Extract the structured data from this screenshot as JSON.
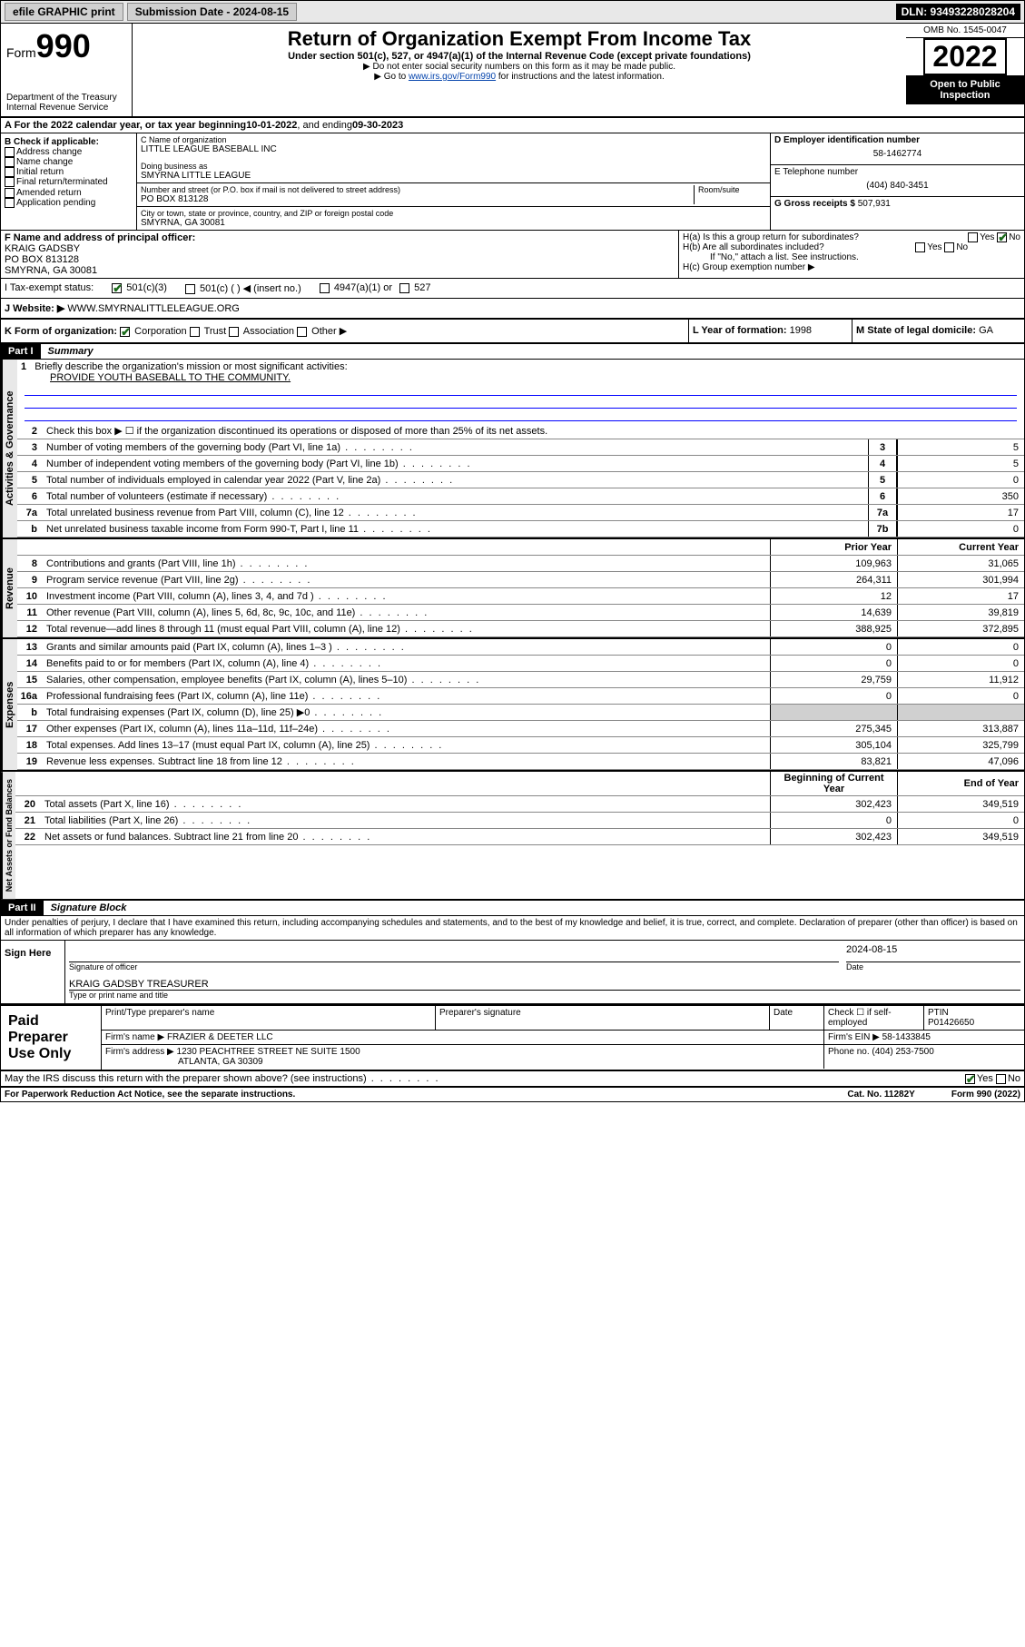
{
  "topbar": {
    "efile": "efile GRAPHIC print",
    "submission_label": "Submission Date - 2024-08-15",
    "dln": "DLN: 93493228028204"
  },
  "header": {
    "form_prefix": "Form",
    "form_number": "990",
    "dept": "Department of the Treasury",
    "irs": "Internal Revenue Service",
    "title": "Return of Organization Exempt From Income Tax",
    "subtitle": "Under section 501(c), 527, or 4947(a)(1) of the Internal Revenue Code (except private foundations)",
    "instr1": "▶ Do not enter social security numbers on this form as it may be made public.",
    "instr2_pre": "▶ Go to ",
    "instr2_link": "www.irs.gov/Form990",
    "instr2_post": " for instructions and the latest information.",
    "omb": "OMB No. 1545-0047",
    "year": "2022",
    "inspect1": "Open to Public",
    "inspect2": "Inspection"
  },
  "section_a": {
    "prefix": "A For the 2022 calendar year, or tax year beginning ",
    "begin": "10-01-2022",
    "mid": " , and ending ",
    "end": "09-30-2023"
  },
  "section_b": {
    "label": "B Check if applicable:",
    "opts": [
      "Address change",
      "Name change",
      "Initial return",
      "Final return/terminated",
      "Amended return",
      "Application pending"
    ]
  },
  "section_c": {
    "name_label": "C Name of organization",
    "name": "LITTLE LEAGUE BASEBALL INC",
    "dba_label": "Doing business as",
    "dba": "SMYRNA LITTLE LEAGUE",
    "addr_label": "Number and street (or P.O. box if mail is not delivered to street address)",
    "room_label": "Room/suite",
    "addr": "PO BOX 813128",
    "city_label": "City or town, state or province, country, and ZIP or foreign postal code",
    "city": "SMYRNA, GA  30081"
  },
  "section_d": {
    "label": "D Employer identification number",
    "value": "58-1462774"
  },
  "section_e": {
    "label": "E Telephone number",
    "value": "(404) 840-3451"
  },
  "section_g": {
    "label": "G Gross receipts $",
    "value": "507,931"
  },
  "section_f": {
    "label": "F Name and address of principal officer:",
    "name": "KRAIG GADSBY",
    "addr1": "PO BOX 813128",
    "addr2": "SMYRNA, GA  30081"
  },
  "section_h": {
    "ha": "H(a) Is this a group return for subordinates?",
    "hb": "H(b) Are all subordinates included?",
    "hb_note": "If \"No,\" attach a list. See instructions.",
    "hc": "H(c) Group exemption number ▶"
  },
  "section_i": {
    "label": "I    Tax-exempt status:",
    "o1": "501(c)(3)",
    "o2": "501(c) (  ) ◀ (insert no.)",
    "o3": "4947(a)(1) or",
    "o4": "527"
  },
  "section_j": {
    "label": "J    Website: ▶",
    "value": "WWW.SMYRNALITTLELEAGUE.ORG"
  },
  "section_k": {
    "label": "K Form of organization:",
    "o1": "Corporation",
    "o2": "Trust",
    "o3": "Association",
    "o4": "Other ▶"
  },
  "section_l": {
    "label": "L Year of formation:",
    "value": "1998"
  },
  "section_m": {
    "label": "M State of legal domicile:",
    "value": "GA"
  },
  "part1": {
    "header": "Part I",
    "title": "Summary",
    "l1": "Briefly describe the organization's mission or most significant activities:",
    "mission": "PROVIDE YOUTH BASEBALL TO THE COMMUNITY.",
    "l2": "Check this box ▶ ☐ if the organization discontinued its operations or disposed of more than 25% of its net assets.",
    "tabs": {
      "gov": "Activities & Governance",
      "rev": "Revenue",
      "exp": "Expenses",
      "net": "Net Assets or Fund Balances"
    },
    "cols": {
      "prior": "Prior Year",
      "current": "Current Year",
      "begin": "Beginning of Current Year",
      "end": "End of Year"
    },
    "gov_lines": [
      {
        "n": "3",
        "t": "Number of voting members of the governing body (Part VI, line 1a)",
        "box": "3",
        "v": "5"
      },
      {
        "n": "4",
        "t": "Number of independent voting members of the governing body (Part VI, line 1b)",
        "box": "4",
        "v": "5"
      },
      {
        "n": "5",
        "t": "Total number of individuals employed in calendar year 2022 (Part V, line 2a)",
        "box": "5",
        "v": "0"
      },
      {
        "n": "6",
        "t": "Total number of volunteers (estimate if necessary)",
        "box": "6",
        "v": "350"
      },
      {
        "n": "7a",
        "t": "Total unrelated business revenue from Part VIII, column (C), line 12",
        "box": "7a",
        "v": "17"
      },
      {
        "n": "b",
        "t": "Net unrelated business taxable income from Form 990-T, Part I, line 11",
        "box": "7b",
        "v": "0"
      }
    ],
    "rev_lines": [
      {
        "n": "8",
        "t": "Contributions and grants (Part VIII, line 1h)",
        "p": "109,963",
        "c": "31,065"
      },
      {
        "n": "9",
        "t": "Program service revenue (Part VIII, line 2g)",
        "p": "264,311",
        "c": "301,994"
      },
      {
        "n": "10",
        "t": "Investment income (Part VIII, column (A), lines 3, 4, and 7d )",
        "p": "12",
        "c": "17"
      },
      {
        "n": "11",
        "t": "Other revenue (Part VIII, column (A), lines 5, 6d, 8c, 9c, 10c, and 11e)",
        "p": "14,639",
        "c": "39,819"
      },
      {
        "n": "12",
        "t": "Total revenue—add lines 8 through 11 (must equal Part VIII, column (A), line 12)",
        "p": "388,925",
        "c": "372,895"
      }
    ],
    "exp_lines": [
      {
        "n": "13",
        "t": "Grants and similar amounts paid (Part IX, column (A), lines 1–3 )",
        "p": "0",
        "c": "0"
      },
      {
        "n": "14",
        "t": "Benefits paid to or for members (Part IX, column (A), line 4)",
        "p": "0",
        "c": "0"
      },
      {
        "n": "15",
        "t": "Salaries, other compensation, employee benefits (Part IX, column (A), lines 5–10)",
        "p": "29,759",
        "c": "11,912"
      },
      {
        "n": "16a",
        "t": "Professional fundraising fees (Part IX, column (A), line 11e)",
        "p": "0",
        "c": "0"
      },
      {
        "n": "b",
        "t": "Total fundraising expenses (Part IX, column (D), line 25) ▶0",
        "p": "",
        "c": "",
        "shaded": true
      },
      {
        "n": "17",
        "t": "Other expenses (Part IX, column (A), lines 11a–11d, 11f–24e)",
        "p": "275,345",
        "c": "313,887"
      },
      {
        "n": "18",
        "t": "Total expenses. Add lines 13–17 (must equal Part IX, column (A), line 25)",
        "p": "305,104",
        "c": "325,799"
      },
      {
        "n": "19",
        "t": "Revenue less expenses. Subtract line 18 from line 12",
        "p": "83,821",
        "c": "47,096"
      }
    ],
    "net_lines": [
      {
        "n": "20",
        "t": "Total assets (Part X, line 16)",
        "p": "302,423",
        "c": "349,519"
      },
      {
        "n": "21",
        "t": "Total liabilities (Part X, line 26)",
        "p": "0",
        "c": "0"
      },
      {
        "n": "22",
        "t": "Net assets or fund balances. Subtract line 21 from line 20",
        "p": "302,423",
        "c": "349,519"
      }
    ]
  },
  "part2": {
    "header": "Part II",
    "title": "Signature Block",
    "declaration": "Under penalties of perjury, I declare that I have examined this return, including accompanying schedules and statements, and to the best of my knowledge and belief, it is true, correct, and complete. Declaration of preparer (other than officer) is based on all information of which preparer has any knowledge.",
    "sign_here": "Sign Here",
    "sig_officer": "Signature of officer",
    "sig_date_label": "Date",
    "sig_date": "2024-08-15",
    "officer_name": "KRAIG GADSBY TREASURER",
    "officer_label": "Type or print name and title",
    "paid_prep": "Paid Preparer Use Only",
    "prep_name_label": "Print/Type preparer's name",
    "prep_sig_label": "Preparer's signature",
    "prep_date_label": "Date",
    "prep_check": "Check ☐ if self-employed",
    "ptin_label": "PTIN",
    "ptin": "P01426650",
    "firm_name_label": "Firm's name   ▶",
    "firm_name": "FRAZIER & DEETER LLC",
    "firm_ein_label": "Firm's EIN ▶",
    "firm_ein": "58-1433845",
    "firm_addr_label": "Firm's address ▶",
    "firm_addr1": "1230 PEACHTREE STREET NE SUITE 1500",
    "firm_addr2": "ATLANTA, GA  30309",
    "firm_phone_label": "Phone no.",
    "firm_phone": "(404) 253-7500",
    "discuss": "May the IRS discuss this return with the preparer shown above? (see instructions)"
  },
  "footer": {
    "paperwork": "For Paperwork Reduction Act Notice, see the separate instructions.",
    "cat": "Cat. No. 11282Y",
    "form": "Form 990 (2022)"
  }
}
